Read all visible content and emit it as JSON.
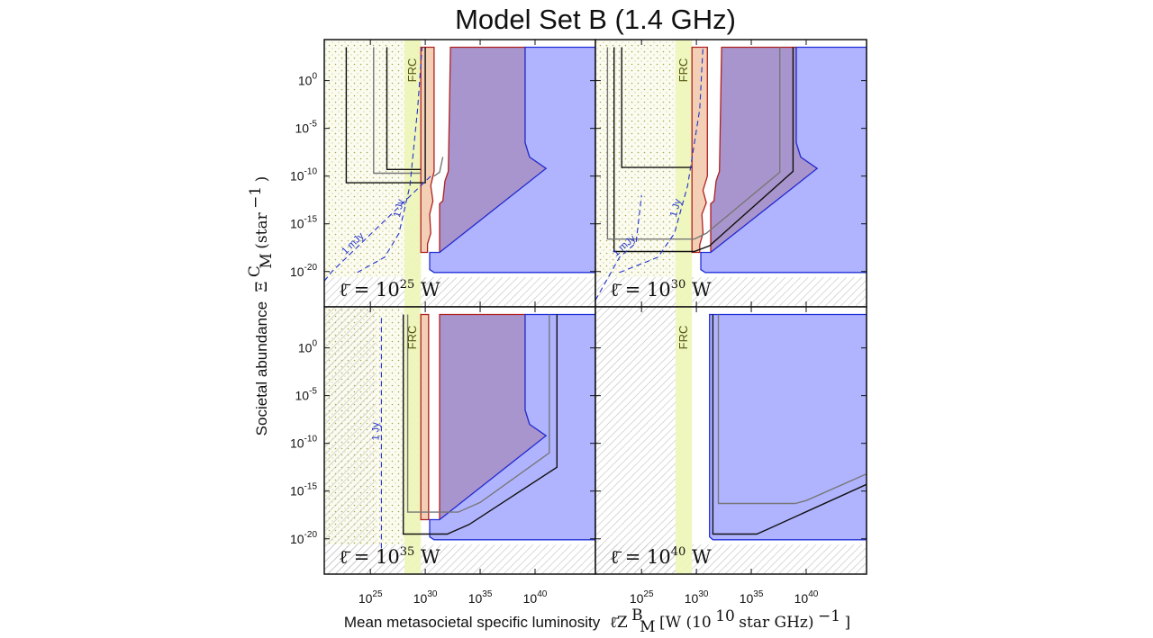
{
  "chart_data": {
    "type": "area",
    "title": "Model Set B (1.4 GHz)",
    "xlabel": {
      "text": "Mean metasocietal specific luminosity",
      "math": [
        "ℓ̄Z",
        "B",
        "M",
        " [W (10",
        "10",
        " star GHz)",
        "−1",
        "]"
      ]
    },
    "ylabel": {
      "text": "Societal abundance",
      "math": [
        "Ξ",
        "C",
        "M",
        " (star",
        "−1",
        ")"
      ]
    },
    "xscale": "log10",
    "yscale": "log10",
    "xlim": [
      20.8,
      45.5
    ],
    "ylim": [
      -23.7,
      4.3
    ],
    "x_ticks": [
      25,
      30,
      35,
      40
    ],
    "x_tick_labels": [
      [
        "10",
        "25"
      ],
      [
        "10",
        "30"
      ],
      [
        "10",
        "35"
      ],
      [
        "10",
        "40"
      ]
    ],
    "y_ticks": [
      0,
      -5,
      -10,
      -15,
      -20
    ],
    "y_tick_labels": [
      [
        "10",
        "0"
      ],
      [
        "10",
        "-5"
      ],
      [
        "10",
        "-10"
      ],
      [
        "10",
        "-15"
      ],
      [
        "10",
        "-20"
      ]
    ],
    "frc_label": "FRC",
    "frc_band_x": [
      28.1,
      29.6
    ],
    "legend": "none",
    "panels": [
      {
        "label": [
          "ℓ̄ = 10",
          "25",
          " W"
        ],
        "hatch_below_y": -20.6,
        "hatch_left_x": null,
        "dotted_left_x": 29.6,
        "regions": [
          {
            "name": "excluded-orange",
            "color": "#f2cfb5",
            "edge": "#b02020",
            "points": [
              [
                29.6,
                -18
              ],
              [
                29.6,
                3.5
              ],
              [
                30.8,
                3.5
              ],
              [
                30.8,
                -9.5
              ],
              [
                30.5,
                -11
              ],
              [
                30.7,
                -12.6
              ],
              [
                30.4,
                -14
              ],
              [
                30.5,
                -16
              ],
              [
                30.2,
                -17.1
              ],
              [
                30.2,
                -18
              ]
            ]
          },
          {
            "name": "excluded-purple",
            "color": "#a995cd",
            "edge": "#b02020",
            "points": [
              [
                31.3,
                -18
              ],
              [
                31.3,
                -12.9
              ],
              [
                31.6,
                -12.6
              ],
              [
                31.8,
                -10.5
              ],
              [
                32.1,
                -9.5
              ],
              [
                32.3,
                3.5
              ],
              [
                39.1,
                3.5
              ],
              [
                39.1,
                -6.5
              ],
              [
                39.5,
                -8
              ],
              [
                41.0,
                -9.2
              ]
            ]
          },
          {
            "name": "excluded-blue",
            "color": "#b0b4ff",
            "edge": "#1f2fd8",
            "points": [
              [
                45.5,
                -20.1
              ],
              [
                30.8,
                -20.1
              ],
              [
                30.4,
                -19.8
              ],
              [
                30.4,
                -18
              ],
              [
                31.3,
                -18
              ],
              [
                41.0,
                -9.2
              ],
              [
                39.5,
                -8
              ],
              [
                39.1,
                -6.5
              ],
              [
                39.1,
                3.5
              ],
              [
                45.5,
                3.5
              ]
            ]
          }
        ],
        "lines": [
          {
            "name": "black-limit",
            "color": "#111111",
            "points": [
              [
                22.8,
                3.5
              ],
              [
                22.8,
                -10.7
              ],
              [
                30.0,
                -10.7
              ],
              [
                30.0,
                3.5
              ]
            ]
          },
          {
            "name": "black-limit-2",
            "color": "#111111",
            "points": [
              [
                26.5,
                3.5
              ],
              [
                26.5,
                -9.3
              ],
              [
                29.6,
                -9.3
              ]
            ]
          },
          {
            "name": "gray-limit",
            "color": "#777777",
            "points": [
              [
                25.3,
                3.5
              ],
              [
                25.3,
                -9.7
              ],
              [
                29.6,
                -9.7
              ]
            ]
          },
          {
            "name": "gray-limit-2",
            "color": "#777777",
            "points": [
              [
                30.8,
                -10
              ],
              [
                31.3,
                -9.6
              ],
              [
                31.6,
                -8
              ]
            ]
          }
        ],
        "jy_lines": [
          {
            "label": "1 mJy",
            "points": [
              [
                20.8,
                -21
              ],
              [
                21.5,
                -20
              ],
              [
                26.0,
                -15
              ],
              [
                30.5,
                -10
              ]
            ]
          },
          {
            "label": "1 Jy",
            "points": [
              [
                23.8,
                -20.1
              ],
              [
                26.3,
                -18.5
              ],
              [
                27.6,
                -16
              ],
              [
                28.6,
                -11
              ],
              [
                29.3,
                -3
              ],
              [
                29.7,
                3.5
              ]
            ]
          }
        ]
      },
      {
        "label": [
          "ℓ̄ = 10",
          "30",
          " W"
        ],
        "hatch_below_y": -20.6,
        "hatch_left_x": null,
        "dotted_left_x": 28.1,
        "regions": [
          {
            "name": "excluded-orange",
            "color": "#f2cfb5",
            "edge": "#b02020",
            "points": [
              [
                29.6,
                -18
              ],
              [
                29.6,
                3.5
              ],
              [
                31.0,
                3.5
              ],
              [
                31.0,
                -10
              ],
              [
                30.6,
                -11.5
              ],
              [
                30.9,
                -12.8
              ],
              [
                30.5,
                -14
              ],
              [
                30.6,
                -16
              ],
              [
                30.3,
                -17.2
              ],
              [
                30.3,
                -18
              ]
            ]
          },
          {
            "name": "excluded-purple",
            "color": "#a995cd",
            "edge": "#b02020",
            "points": [
              [
                31.3,
                -18
              ],
              [
                31.3,
                -12.9
              ],
              [
                31.6,
                -12.6
              ],
              [
                31.8,
                -10.5
              ],
              [
                32.1,
                -9.5
              ],
              [
                32.3,
                3.5
              ],
              [
                39.1,
                3.5
              ],
              [
                39.1,
                -6.5
              ],
              [
                39.5,
                -8
              ],
              [
                41.0,
                -9.2
              ]
            ]
          },
          {
            "name": "excluded-blue",
            "color": "#b0b4ff",
            "edge": "#1f2fd8",
            "points": [
              [
                45.5,
                -20.1
              ],
              [
                30.8,
                -20.1
              ],
              [
                30.4,
                -19.8
              ],
              [
                30.4,
                -18
              ],
              [
                31.3,
                -18
              ],
              [
                41.0,
                -9.2
              ],
              [
                39.5,
                -8
              ],
              [
                39.1,
                -6.5
              ],
              [
                39.1,
                3.5
              ],
              [
                45.5,
                3.5
              ]
            ]
          }
        ],
        "lines": [
          {
            "name": "black-limit",
            "color": "#111111",
            "points": [
              [
                22.5,
                3.5
              ],
              [
                22.5,
                -17.9
              ],
              [
                29.8,
                -17.9
              ],
              [
                31.2,
                -17.3
              ],
              [
                38.8,
                -9.5
              ],
              [
                38.8,
                3.5
              ]
            ]
          },
          {
            "name": "black-limit-2",
            "color": "#111111",
            "points": [
              [
                23.2,
                3.5
              ],
              [
                23.2,
                -9.1
              ],
              [
                29.6,
                -9.1
              ]
            ]
          },
          {
            "name": "gray-limit",
            "color": "#777777",
            "points": [
              [
                21.9,
                3.5
              ],
              [
                21.9,
                -16.6
              ],
              [
                29.8,
                -16.6
              ],
              [
                30.9,
                -16
              ],
              [
                37.6,
                -9.6
              ],
              [
                37.6,
                3.5
              ]
            ]
          }
        ],
        "jy_lines": [
          {
            "label": "1 mJy",
            "points": [
              [
                20.8,
                -23
              ],
              [
                23.0,
                -18.5
              ],
              [
                24.5,
                -17
              ],
              [
                25.0,
                -12
              ]
            ]
          },
          {
            "label": "1 Jy",
            "points": [
              [
                23.0,
                -20.1
              ],
              [
                26.5,
                -18.5
              ],
              [
                28.0,
                -16
              ],
              [
                29.2,
                -11
              ],
              [
                30.3,
                -3
              ],
              [
                30.6,
                3.5
              ]
            ]
          }
        ]
      },
      {
        "label": [
          "ℓ̄ = 10",
          "35",
          " W"
        ],
        "hatch_below_y": -20.6,
        "hatch_left_x": 25.5,
        "dotted_left_x": 29.6,
        "regions": [
          {
            "name": "excluded-orange",
            "color": "#f2cfb5",
            "edge": "#b02020",
            "points": [
              [
                29.6,
                -18
              ],
              [
                29.6,
                3.5
              ],
              [
                30.3,
                3.5
              ],
              [
                30.3,
                -18
              ]
            ]
          },
          {
            "name": "excluded-purple",
            "color": "#a995cd",
            "edge": "#b02020",
            "points": [
              [
                31.3,
                -18
              ],
              [
                31.3,
                3.5
              ],
              [
                39.1,
                3.5
              ],
              [
                39.1,
                -6.5
              ],
              [
                39.5,
                -8
              ],
              [
                41.0,
                -9.2
              ]
            ]
          },
          {
            "name": "excluded-blue",
            "color": "#b0b4ff",
            "edge": "#1f2fd8",
            "points": [
              [
                45.5,
                -20.1
              ],
              [
                30.8,
                -20.1
              ],
              [
                30.4,
                -19.8
              ],
              [
                30.4,
                -18
              ],
              [
                31.3,
                -18
              ],
              [
                41.0,
                -9.2
              ],
              [
                39.5,
                -8
              ],
              [
                39.1,
                -6.5
              ],
              [
                39.1,
                3.5
              ],
              [
                45.5,
                3.5
              ]
            ]
          }
        ],
        "lines": [
          {
            "name": "black-limit",
            "color": "#111111",
            "points": [
              [
                28.0,
                3.5
              ],
              [
                28.0,
                -19.5
              ],
              [
                32.0,
                -19.5
              ],
              [
                34.0,
                -18.5
              ],
              [
                42.0,
                -12.5
              ],
              [
                42.0,
                3.5
              ]
            ]
          },
          {
            "name": "gray-limit",
            "color": "#777777",
            "points": [
              [
                28.4,
                3.5
              ],
              [
                28.4,
                -17.2
              ],
              [
                33.0,
                -17.2
              ],
              [
                35.0,
                -16.2
              ],
              [
                41.3,
                -11
              ],
              [
                41.3,
                3.5
              ]
            ]
          }
        ],
        "jy_lines": [
          {
            "label": "1 Jy",
            "points": [
              [
                26.0,
                -21
              ],
              [
                26.0,
                3.5
              ]
            ]
          }
        ]
      },
      {
        "label": [
          "ℓ̄ = 10",
          "40",
          " W"
        ],
        "hatch_below_y": -20.6,
        "hatch_left_x": 28.1,
        "dotted_left_x": null,
        "regions": [
          {
            "name": "excluded-blue",
            "color": "#b0b4ff",
            "edge": "#1f2fd8",
            "points": [
              [
                45.5,
                -20.1
              ],
              [
                31.5,
                -20.1
              ],
              [
                31.2,
                -19.8
              ],
              [
                31.2,
                3.5
              ],
              [
                45.5,
                3.5
              ]
            ]
          }
        ],
        "lines": [
          {
            "name": "black-limit",
            "color": "#111111",
            "points": [
              [
                31.5,
                3.5
              ],
              [
                31.5,
                -19.5
              ],
              [
                35.5,
                -19.5
              ],
              [
                36.5,
                -19
              ],
              [
                45.5,
                -14.3
              ]
            ]
          },
          {
            "name": "gray-limit",
            "color": "#777777",
            "points": [
              [
                32.0,
                3.5
              ],
              [
                32.0,
                -16.3
              ],
              [
                39.0,
                -16.3
              ],
              [
                40.0,
                -16
              ],
              [
                45.5,
                -13.2
              ]
            ]
          }
        ],
        "jy_lines": []
      }
    ]
  }
}
